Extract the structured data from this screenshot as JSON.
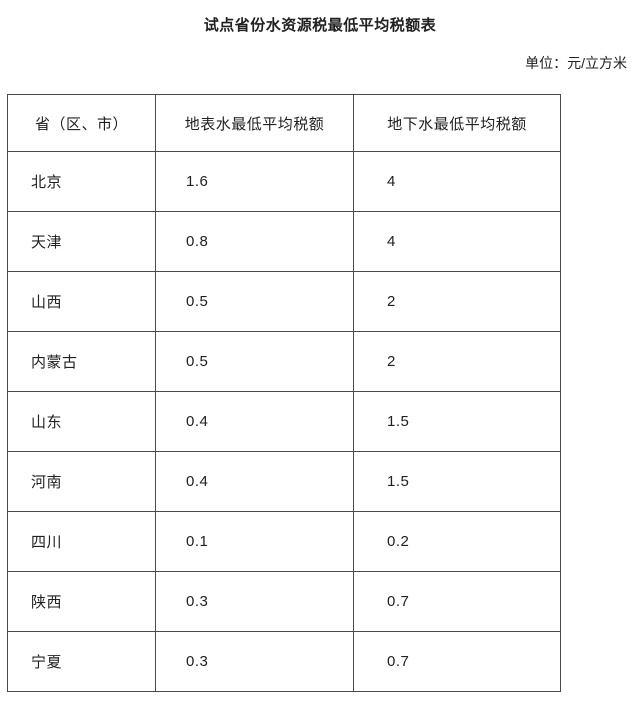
{
  "page": {
    "title": "试点省份水资源税最低平均税额表",
    "unit_label": "单位：元/立方米"
  },
  "table": {
    "columns": [
      "省（区、市）",
      "地表水最低平均税额",
      "地下水最低平均税额"
    ],
    "rows": [
      {
        "province": "北京",
        "surface_water": "1.6",
        "groundwater": "4"
      },
      {
        "province": "天津",
        "surface_water": "0.8",
        "groundwater": "4"
      },
      {
        "province": "山西",
        "surface_water": "0.5",
        "groundwater": "2"
      },
      {
        "province": "内蒙古",
        "surface_water": "0.5",
        "groundwater": "2"
      },
      {
        "province": "山东",
        "surface_water": "0.4",
        "groundwater": "1.5"
      },
      {
        "province": "河南",
        "surface_water": "0.4",
        "groundwater": "1.5"
      },
      {
        "province": "四川",
        "surface_water": "0.1",
        "groundwater": "0.2"
      },
      {
        "province": "陕西",
        "surface_water": "0.3",
        "groundwater": "0.7"
      },
      {
        "province": "宁夏",
        "surface_water": "0.3",
        "groundwater": "0.7"
      }
    ]
  },
  "colors": {
    "background": "#ffffff",
    "text": "#212121",
    "border": "#4a4a4a"
  }
}
